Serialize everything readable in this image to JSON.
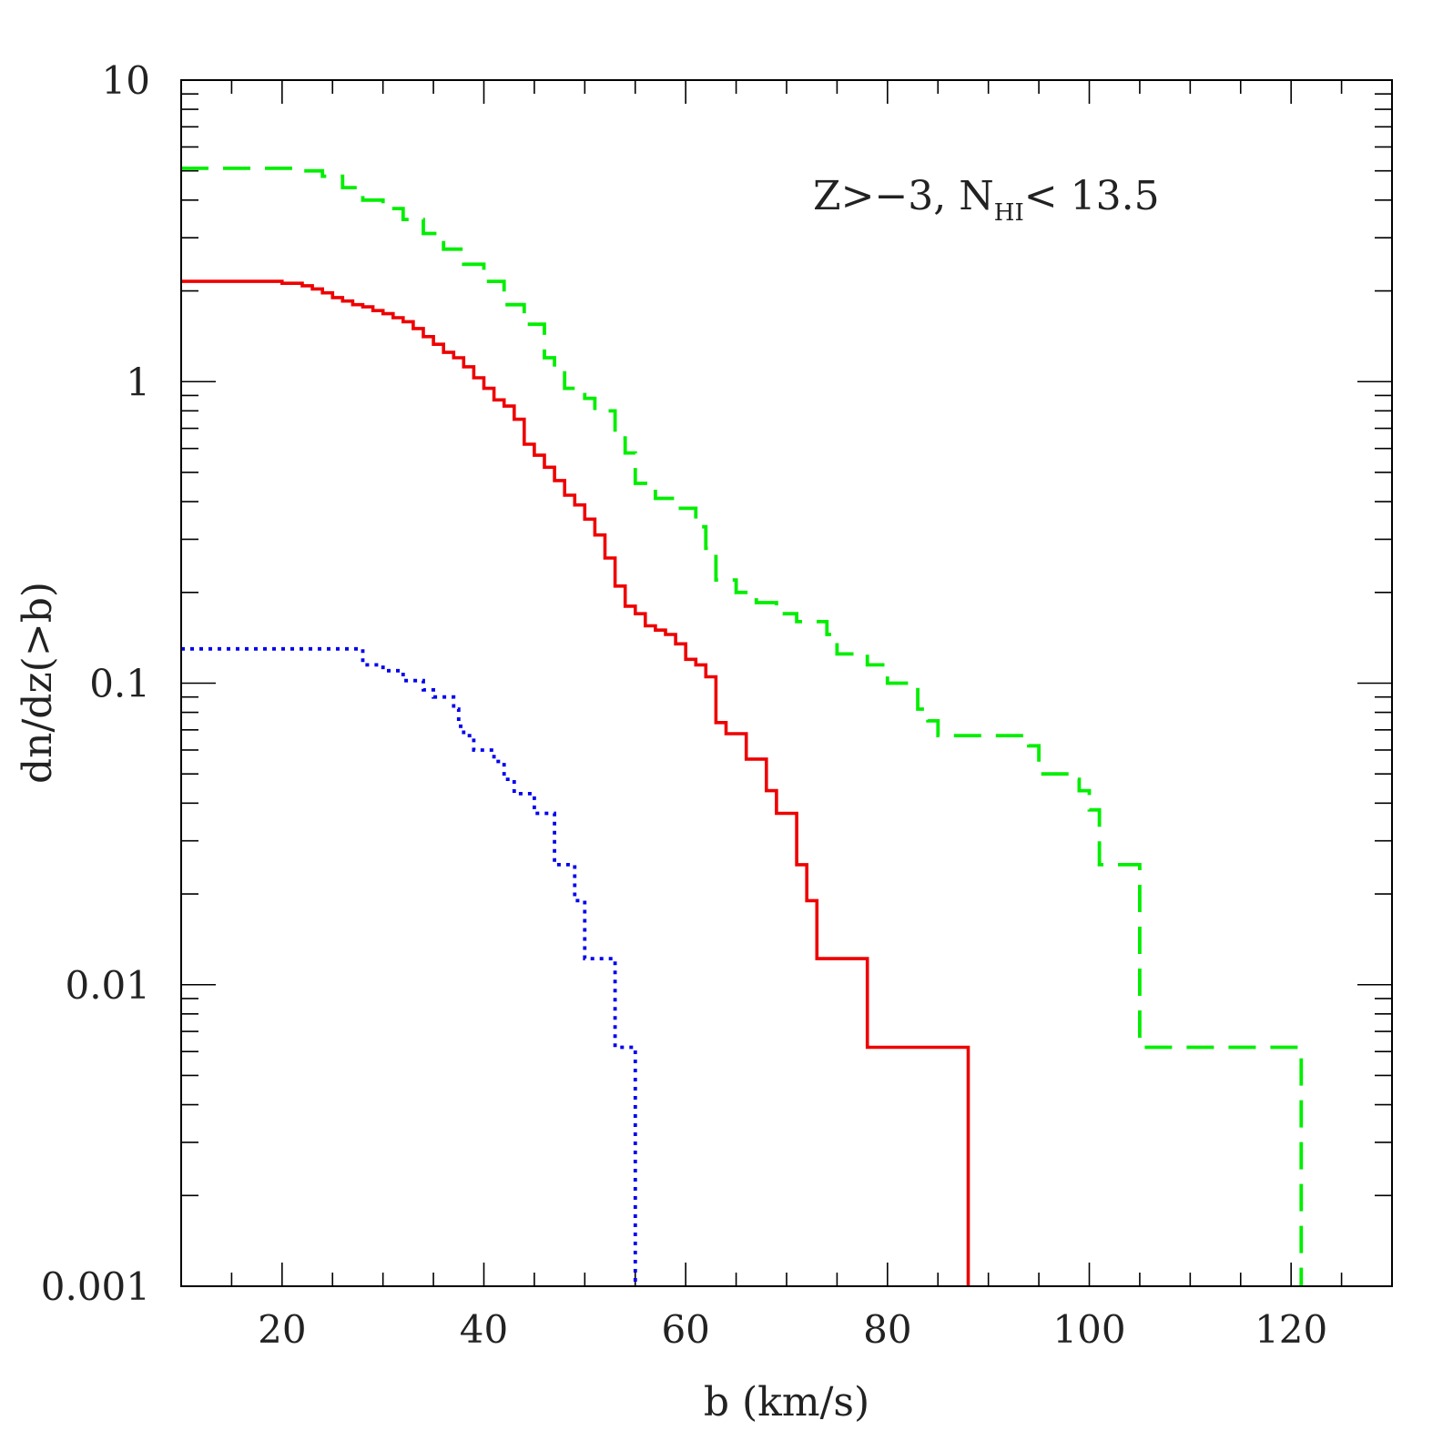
{
  "chart_data": {
    "type": "line",
    "step": true,
    "xlabel": "b (km/s)",
    "ylabel": "dn/dz(>b)",
    "xlim": [
      10,
      130
    ],
    "ylim": [
      0.001,
      10
    ],
    "yscale": "log",
    "grid": false,
    "x_ticks": [
      20,
      40,
      60,
      80,
      100,
      120
    ],
    "x_tick_labels": [
      "20",
      "40",
      "60",
      "80",
      "100",
      "120"
    ],
    "y_ticks": [
      0.001,
      0.01,
      0.1,
      1,
      10
    ],
    "y_tick_labels": [
      "0.001",
      "0.01",
      "0.1",
      "1",
      "10"
    ],
    "annotation": {
      "part1": "Z>−3,  N",
      "sub": "HI",
      "part2": "<  13.5"
    },
    "series": [
      {
        "color": "#00ee00",
        "dash": "dashed",
        "points": [
          [
            10,
            5.1
          ],
          [
            21,
            5.1
          ],
          [
            22,
            5.0
          ],
          [
            24,
            4.8
          ],
          [
            26,
            4.4
          ],
          [
            28,
            4.0
          ],
          [
            30,
            3.75
          ],
          [
            32,
            3.45
          ],
          [
            34,
            3.1
          ],
          [
            36,
            2.75
          ],
          [
            38,
            2.45
          ],
          [
            40,
            2.15
          ],
          [
            42,
            1.8
          ],
          [
            44,
            1.55
          ],
          [
            46,
            1.2
          ],
          [
            47,
            1.12
          ],
          [
            48,
            0.95
          ],
          [
            50,
            0.88
          ],
          [
            51,
            0.8
          ],
          [
            53,
            0.65
          ],
          [
            54,
            0.58
          ],
          [
            55,
            0.46
          ],
          [
            57,
            0.41
          ],
          [
            59,
            0.38
          ],
          [
            61,
            0.33
          ],
          [
            62,
            0.28
          ],
          [
            63,
            0.22
          ],
          [
            65,
            0.2
          ],
          [
            67,
            0.185
          ],
          [
            69,
            0.17
          ],
          [
            71,
            0.16
          ],
          [
            74,
            0.145
          ],
          [
            75,
            0.125
          ],
          [
            78,
            0.115
          ],
          [
            80,
            0.1
          ],
          [
            83,
            0.082
          ],
          [
            84,
            0.075
          ],
          [
            85,
            0.067
          ],
          [
            94,
            0.062
          ],
          [
            95,
            0.05
          ],
          [
            98,
            0.048
          ],
          [
            99,
            0.044
          ],
          [
            100,
            0.038
          ],
          [
            101,
            0.025
          ],
          [
            105,
            0.0062
          ],
          [
            121,
            0.001
          ]
        ]
      },
      {
        "color": "#ee0000",
        "dash": "solid",
        "points": [
          [
            10,
            2.15
          ],
          [
            19,
            2.15
          ],
          [
            20,
            2.12
          ],
          [
            22,
            2.08
          ],
          [
            23,
            2.03
          ],
          [
            24,
            1.97
          ],
          [
            25,
            1.9
          ],
          [
            26,
            1.85
          ],
          [
            27,
            1.8
          ],
          [
            28,
            1.77
          ],
          [
            29,
            1.72
          ],
          [
            30,
            1.68
          ],
          [
            31,
            1.63
          ],
          [
            32,
            1.58
          ],
          [
            33,
            1.5
          ],
          [
            34,
            1.41
          ],
          [
            35,
            1.33
          ],
          [
            36,
            1.25
          ],
          [
            37,
            1.2
          ],
          [
            38,
            1.12
          ],
          [
            39,
            1.03
          ],
          [
            40,
            0.95
          ],
          [
            41,
            0.87
          ],
          [
            42,
            0.83
          ],
          [
            43,
            0.75
          ],
          [
            44,
            0.62
          ],
          [
            45,
            0.57
          ],
          [
            46,
            0.52
          ],
          [
            47,
            0.47
          ],
          [
            48,
            0.42
          ],
          [
            49,
            0.39
          ],
          [
            50,
            0.35
          ],
          [
            51,
            0.31
          ],
          [
            52,
            0.26
          ],
          [
            53,
            0.21
          ],
          [
            54,
            0.18
          ],
          [
            55,
            0.17
          ],
          [
            56,
            0.155
          ],
          [
            57,
            0.15
          ],
          [
            58,
            0.145
          ],
          [
            59,
            0.135
          ],
          [
            60,
            0.12
          ],
          [
            61,
            0.115
          ],
          [
            62,
            0.105
          ],
          [
            63,
            0.074
          ],
          [
            64,
            0.068
          ],
          [
            66,
            0.056
          ],
          [
            68,
            0.044
          ],
          [
            69,
            0.037
          ],
          [
            71,
            0.025
          ],
          [
            72,
            0.019
          ],
          [
            73,
            0.0122
          ],
          [
            78,
            0.0062
          ],
          [
            88,
            0.001
          ]
        ]
      },
      {
        "color": "#0000ee",
        "dash": "dotted",
        "points": [
          [
            10,
            0.13
          ],
          [
            27,
            0.13
          ],
          [
            28,
            0.115
          ],
          [
            30,
            0.11
          ],
          [
            32,
            0.102
          ],
          [
            34,
            0.095
          ],
          [
            35,
            0.09
          ],
          [
            37,
            0.082
          ],
          [
            37.5,
            0.072
          ],
          [
            38,
            0.067
          ],
          [
            39,
            0.06
          ],
          [
            41,
            0.055
          ],
          [
            42,
            0.048
          ],
          [
            43,
            0.043
          ],
          [
            45,
            0.037
          ],
          [
            47,
            0.025
          ],
          [
            49,
            0.019
          ],
          [
            50,
            0.0122
          ],
          [
            53,
            0.0062
          ],
          [
            55,
            0.001
          ]
        ]
      }
    ]
  }
}
